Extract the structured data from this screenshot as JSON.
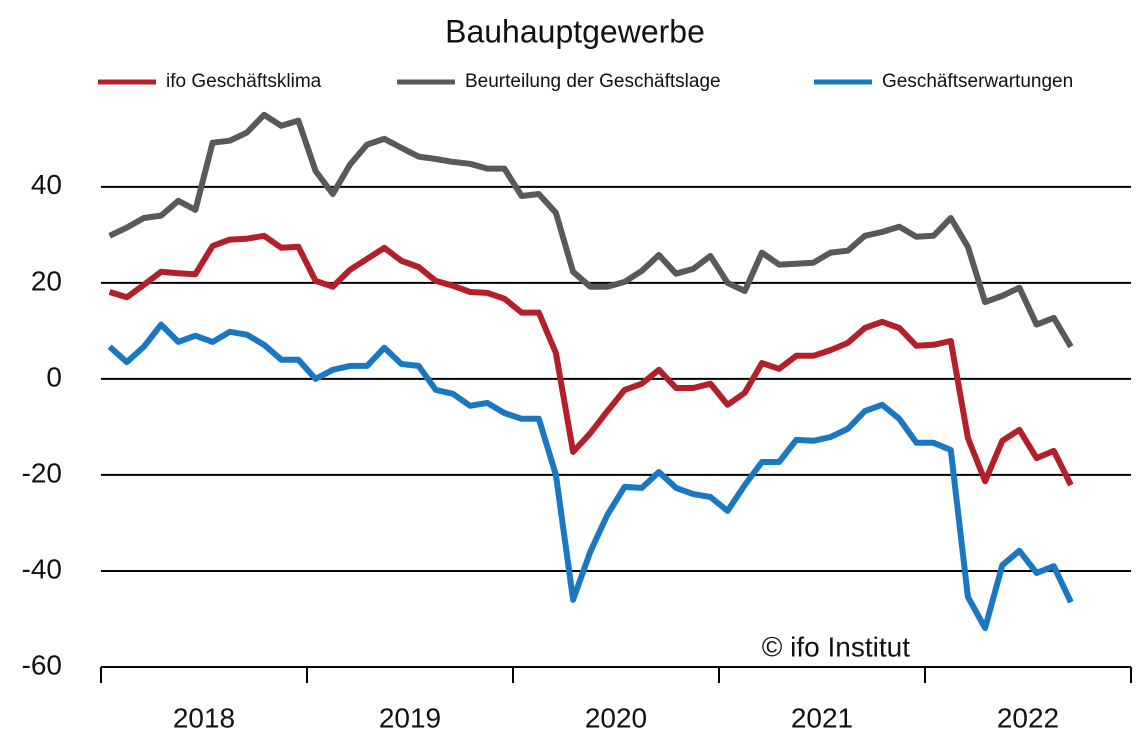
{
  "chart_data": {
    "type": "line",
    "title": "Bauhauptgewerbe",
    "categories": [
      null,
      null,
      null,
      null,
      null,
      "2018",
      null,
      null,
      null,
      null,
      null,
      null,
      null,
      null,
      null,
      null,
      null,
      "2019",
      null,
      null,
      null,
      null,
      null,
      null,
      null,
      null,
      null,
      null,
      null,
      "2020",
      null,
      null,
      null,
      null,
      null,
      null,
      null,
      null,
      null,
      null,
      null,
      "2021",
      null,
      null,
      null,
      null,
      null,
      null,
      null,
      null,
      null,
      null,
      null,
      "2022",
      null,
      null,
      null
    ],
    "series": [
      {
        "name": "ifo Geschäftsklima",
        "color": "#b4202a",
        "values": [
          18.1,
          17,
          19.6,
          22.3,
          22,
          21.8,
          27.7,
          29,
          29.2,
          29.8,
          27.3,
          27.5,
          20.4,
          19.2,
          22.7,
          25,
          27.3,
          24.6,
          23.3,
          20.4,
          19.4,
          18.1,
          17.9,
          16.7,
          13.8,
          13.8,
          5.4,
          -15.2,
          -11.3,
          -6.7,
          -2.3,
          -1,
          1.9,
          -1.9,
          -1.9,
          -1,
          -5.4,
          -2.9,
          3.3,
          2.1,
          4.8,
          4.8,
          6,
          7.5,
          10.6,
          11.9,
          10.6,
          6.9,
          7.1,
          7.9,
          -12.3,
          -21.3,
          -12.9,
          -10.6,
          -16.5,
          -15,
          -22.1
        ]
      },
      {
        "name": "Beurteilung der Geschäftslage",
        "color": "#595959",
        "values": [
          29.8,
          31.5,
          33.5,
          34,
          37.1,
          35.2,
          49.2,
          49.6,
          51.3,
          55,
          52.7,
          53.8,
          43.3,
          38.5,
          44.6,
          48.8,
          50,
          48.1,
          46.3,
          45.8,
          45.2,
          44.8,
          43.8,
          43.8,
          38.1,
          38.5,
          34.6,
          22.3,
          19.2,
          19.2,
          20.2,
          22.5,
          25.8,
          21.9,
          22.9,
          25.6,
          20,
          18.3,
          26.3,
          23.8,
          24,
          24.2,
          26.3,
          26.7,
          29.8,
          30.6,
          31.7,
          29.6,
          29.8,
          33.5,
          27.5,
          16,
          17.3,
          19,
          11.3,
          12.7,
          6.7
        ]
      },
      {
        "name": "Geschäftserwartungen",
        "color": "#1a78c2",
        "values": [
          6.7,
          3.5,
          6.7,
          11.3,
          7.7,
          9,
          7.7,
          9.8,
          9.2,
          7.1,
          4,
          4,
          0,
          1.9,
          2.7,
          2.7,
          6.5,
          3.1,
          2.7,
          -2.3,
          -3.1,
          -5.6,
          -5,
          -7.1,
          -8.3,
          -8.3,
          -20,
          -46,
          -36,
          -28.3,
          -22.5,
          -22.7,
          -19.4,
          -22.7,
          -24,
          -24.6,
          -27.5,
          -22.1,
          -17.3,
          -17.3,
          -12.7,
          -12.9,
          -12.1,
          -10.4,
          -6.7,
          -5.4,
          -8.3,
          -13.3,
          -13.3,
          -14.8,
          -45.4,
          -51.9,
          -38.8,
          -35.8,
          -40.4,
          -39,
          -46.5
        ]
      }
    ],
    "ylim": [
      -60,
      56
    ],
    "yticks": [
      40,
      20,
      0,
      -20,
      -40,
      -60
    ],
    "grid": true,
    "annotation": "© ifo Institut"
  }
}
